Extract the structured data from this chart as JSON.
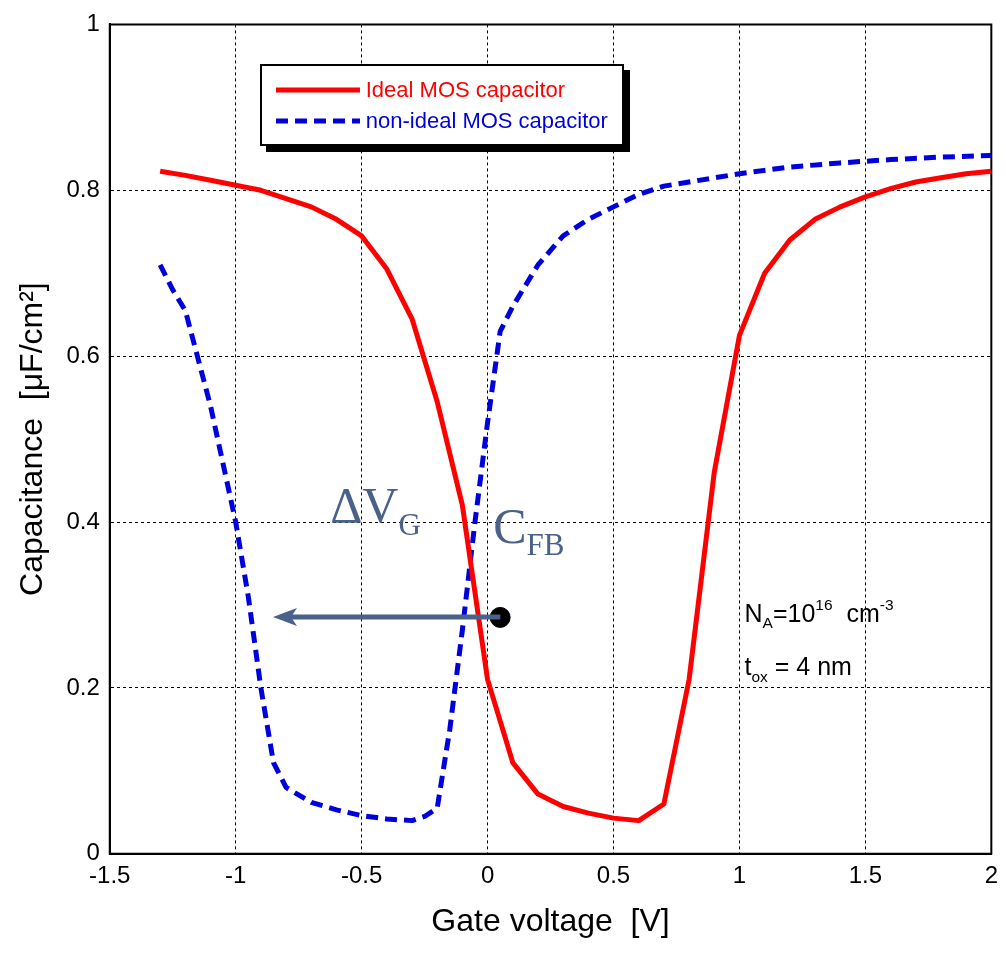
{
  "chart_data": {
    "type": "line",
    "xlabel": "Gate voltage  [V]",
    "ylabel": "Capacitance  [μF/cm²]",
    "xlim": [
      -1.5,
      2
    ],
    "xticks": [
      -1.5,
      -1,
      -0.5,
      0,
      0.5,
      1,
      1.5,
      2
    ],
    "ylim": [
      0,
      1
    ],
    "yticks": [
      0,
      0.2,
      0.4,
      0.6,
      0.8,
      1
    ],
    "grid": true,
    "legend": "top left",
    "marker": "none",
    "series": [
      {
        "name": "Ideal MOS capacitor",
        "color": "#ff0000",
        "line_style": "solid",
        "x": [
          -1.3,
          -1.2,
          -1.1,
          -1,
          -0.9,
          -0.8,
          -0.7,
          -0.6,
          -0.5,
          -0.4,
          -0.3,
          -0.2,
          -0.1,
          0,
          0.1,
          0.2,
          0.3,
          0.4,
          0.5,
          0.6,
          0.7,
          0.8,
          0.9,
          1,
          1.1,
          1.2,
          1.3,
          1.4,
          1.5,
          1.6,
          1.7,
          1.8,
          1.9,
          2
        ],
        "values": [
          0.823,
          0.818,
          0.812,
          0.806,
          0.8,
          0.79,
          0.78,
          0.765,
          0.745,
          0.705,
          0.645,
          0.545,
          0.42,
          0.21,
          0.11,
          0.072,
          0.057,
          0.049,
          0.043,
          0.04,
          0.06,
          0.21,
          0.46,
          0.625,
          0.7,
          0.74,
          0.765,
          0.78,
          0.792,
          0.802,
          0.81,
          0.815,
          0.82,
          0.823
        ]
      },
      {
        "name": "non-ideal MOS capacitor",
        "color": "#0000dd",
        "line_style": "dashed",
        "x": [
          -1.3,
          -1.25,
          -1.2,
          -1.1,
          -1,
          -0.95,
          -0.9,
          -0.85,
          -0.8,
          -0.7,
          -0.6,
          -0.5,
          -0.4,
          -0.3,
          -0.25,
          -0.2,
          -0.15,
          -0.1,
          -0.05,
          0,
          0.05,
          0.1,
          0.2,
          0.3,
          0.4,
          0.5,
          0.6,
          0.7,
          0.8,
          1,
          1.2,
          1.4,
          1.6,
          1.8,
          2
        ],
        "values": [
          0.71,
          0.68,
          0.655,
          0.54,
          0.4,
          0.31,
          0.2,
          0.11,
          0.08,
          0.062,
          0.053,
          0.046,
          0.042,
          0.04,
          0.045,
          0.055,
          0.15,
          0.27,
          0.4,
          0.52,
          0.63,
          0.66,
          0.71,
          0.745,
          0.765,
          0.78,
          0.795,
          0.805,
          0.81,
          0.82,
          0.828,
          0.833,
          0.837,
          0.84,
          0.842
        ]
      },
      {
        "color": "#000000",
        "type": "scatter",
        "marker": "circle",
        "x": [
          0.05
        ],
        "values": [
          0.285
        ]
      }
    ],
    "annotations": [
      "ΔV$_{G}$",
      "C$_{FB}$",
      "N$_{A}$=10$^{16}$  cm$^{-3}$",
      "t$_{ox}$ = 4 nm"
    ]
  }
}
